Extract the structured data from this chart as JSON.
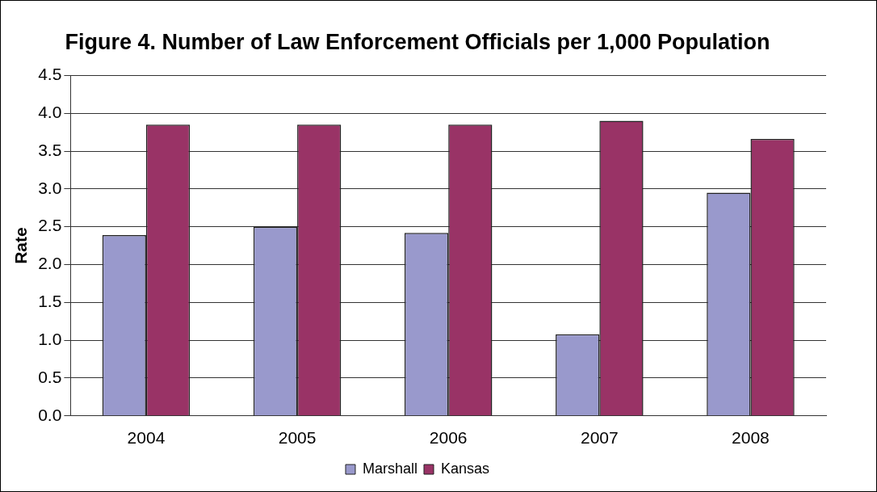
{
  "chart_data": {
    "type": "bar",
    "title": "Figure 4. Number of Law Enforcement Officials per 1,000 Population",
    "ylabel": "Rate",
    "categories": [
      "2004",
      "2005",
      "2006",
      "2007",
      "2008"
    ],
    "series": [
      {
        "name": "Marshall",
        "color": "#9999cc",
        "values": [
          2.39,
          2.5,
          2.42,
          1.08,
          2.95
        ]
      },
      {
        "name": "Kansas",
        "color": "#993366",
        "values": [
          3.85,
          3.85,
          3.85,
          3.9,
          3.66
        ]
      }
    ],
    "ylim": [
      0,
      4.5
    ],
    "yticks": [
      {
        "value": 0,
        "label": "0.0"
      },
      {
        "value": 0.5,
        "label": "0.5"
      },
      {
        "value": 1,
        "label": "1.0"
      },
      {
        "value": 1.5,
        "label": "1.5"
      },
      {
        "value": 2,
        "label": "2.0"
      },
      {
        "value": 2.5,
        "label": "2.5"
      },
      {
        "value": 3,
        "label": "3.0"
      },
      {
        "value": 3.5,
        "label": "3.5"
      },
      {
        "value": 4,
        "label": "4.0"
      },
      {
        "value": 4.5,
        "label": "4.5"
      }
    ],
    "grid": "y",
    "legend": "bottom"
  }
}
